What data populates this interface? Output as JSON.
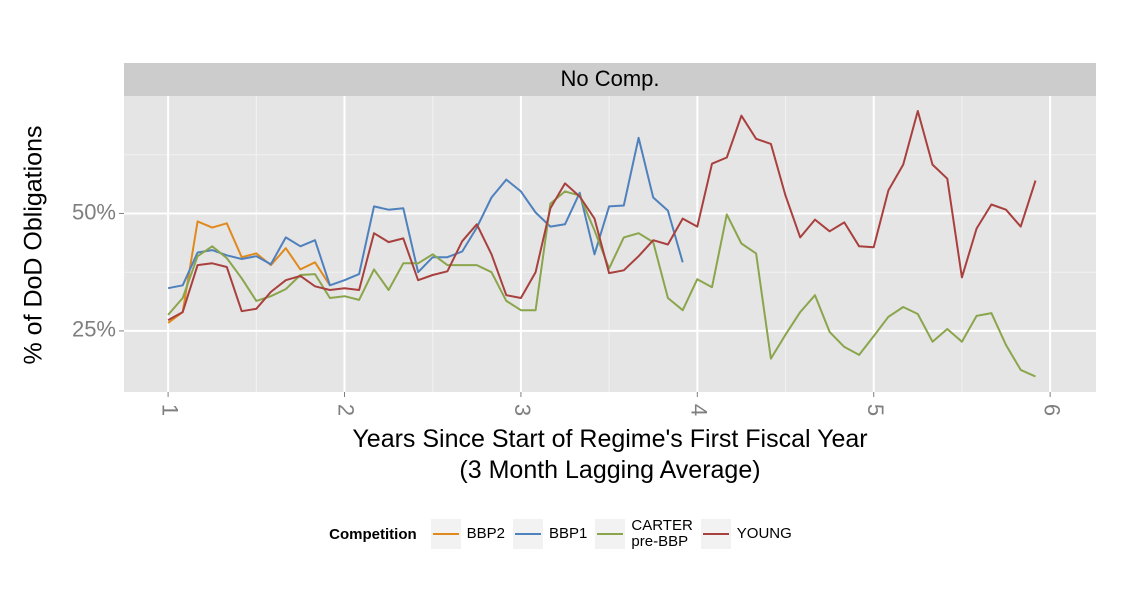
{
  "chart_data": {
    "type": "line",
    "panel_label": "No Comp.",
    "x_label": "Years Since Start of Regime's First Fiscal Year\n(3 Month Lagging Average)",
    "y_label": "% of DoD Obligations",
    "legend_title": "Competition",
    "legend_position": "bottom",
    "grid": true,
    "xlim": [
      0.75,
      6.26
    ],
    "xticks": [
      1,
      2,
      3,
      4,
      5,
      6
    ],
    "xminor": [
      1.5,
      2.5,
      3.5,
      4.5,
      5.5
    ],
    "ylim": [
      12,
      75
    ],
    "yticks": [
      {
        "value": 25,
        "label": "25%"
      },
      {
        "value": 50,
        "label": "50%"
      }
    ],
    "yminor": [
      37.5,
      62.5
    ],
    "x": [
      1,
      1.083,
      1.167,
      1.25,
      1.333,
      1.417,
      1.5,
      1.583,
      1.667,
      1.75,
      1.833,
      1.917,
      2,
      2.083,
      2.167,
      2.25,
      2.333,
      2.417,
      2.5,
      2.583,
      2.667,
      2.75,
      2.833,
      2.917,
      3,
      3.083,
      3.167,
      3.25,
      3.333,
      3.417,
      3.5,
      3.583,
      3.667,
      3.75,
      3.833,
      3.917,
      4,
      4.083,
      4.167,
      4.25,
      4.333,
      4.417,
      4.5,
      4.583,
      4.667,
      4.75,
      4.833,
      4.917,
      5,
      5.083,
      5.167,
      5.25,
      5.333,
      5.417,
      5.5,
      5.583,
      5.667,
      5.75,
      5.833,
      5.917
    ],
    "series": [
      {
        "name": "BBP2",
        "color": "#e08a1e",
        "values": [
          26.7,
          29.0,
          48.3,
          47.0,
          47.9,
          40.7,
          41.5,
          39.0,
          42.6,
          38.1,
          39.6,
          34.7,
          null,
          null,
          null,
          null,
          null,
          null,
          null,
          null,
          null,
          null,
          null,
          null,
          null,
          null,
          null,
          null,
          null,
          null,
          null,
          null,
          null,
          null,
          null,
          null,
          null,
          null,
          null,
          null,
          null,
          null,
          null,
          null,
          null,
          null,
          null,
          null,
          null,
          null,
          null,
          null,
          null,
          null,
          null,
          null,
          null,
          null,
          null,
          null
        ]
      },
      {
        "name": "BBP1",
        "color": "#4f81bd",
        "values": [
          34.1,
          34.7,
          41.7,
          42.2,
          41.1,
          40.3,
          40.9,
          39.2,
          44.9,
          43.0,
          44.3,
          34.7,
          35.8,
          37.1,
          51.5,
          50.8,
          51.1,
          37.5,
          40.7,
          40.7,
          41.9,
          47.0,
          53.4,
          57.2,
          54.7,
          50.2,
          47.2,
          47.7,
          54.4,
          41.3,
          51.5,
          51.7,
          66.1,
          53.4,
          50.6,
          39.6,
          null,
          null,
          null,
          null,
          null,
          null,
          null,
          null,
          null,
          null,
          null,
          null,
          null,
          null,
          null,
          null,
          null,
          null,
          null,
          null,
          null,
          null,
          null,
          null
        ]
      },
      {
        "name": "CARTER\npre-BBP",
        "color": "#8aa54c",
        "values": [
          28.4,
          32.0,
          40.9,
          43.0,
          40.5,
          36.2,
          31.4,
          32.4,
          33.9,
          36.9,
          37.1,
          32.0,
          32.4,
          31.6,
          38.1,
          33.7,
          39.4,
          39.4,
          41.3,
          39.0,
          39.0,
          39.0,
          37.5,
          31.4,
          29.4,
          29.4,
          52.1,
          54.7,
          53.8,
          46.4,
          38.3,
          44.9,
          45.8,
          43.9,
          32.0,
          29.4,
          36.0,
          34.3,
          49.8,
          43.6,
          41.5,
          19.1,
          24.2,
          29.0,
          32.6,
          24.8,
          21.6,
          19.9,
          23.9,
          28.0,
          30.1,
          28.6,
          22.7,
          25.4,
          22.7,
          28.2,
          28.8,
          22.0,
          16.7,
          15.3
        ]
      },
      {
        "name": "YOUNG",
        "color": "#a8403e",
        "values": [
          27.3,
          29.0,
          39.0,
          39.4,
          38.6,
          29.2,
          29.7,
          33.3,
          35.8,
          36.7,
          34.5,
          33.7,
          34.1,
          33.7,
          45.8,
          43.9,
          44.7,
          35.8,
          36.9,
          37.7,
          44.1,
          47.7,
          41.3,
          32.6,
          32.0,
          37.5,
          51.1,
          56.4,
          53.6,
          48.9,
          37.3,
          37.9,
          40.9,
          44.3,
          43.4,
          48.9,
          47.2,
          60.6,
          61.9,
          70.8,
          65.9,
          64.8,
          53.8,
          44.9,
          48.7,
          46.2,
          48.1,
          43.0,
          42.8,
          54.9,
          60.4,
          71.8,
          60.4,
          57.4,
          36.4,
          46.8,
          51.9,
          50.8,
          47.2,
          57.0
        ]
      }
    ]
  }
}
